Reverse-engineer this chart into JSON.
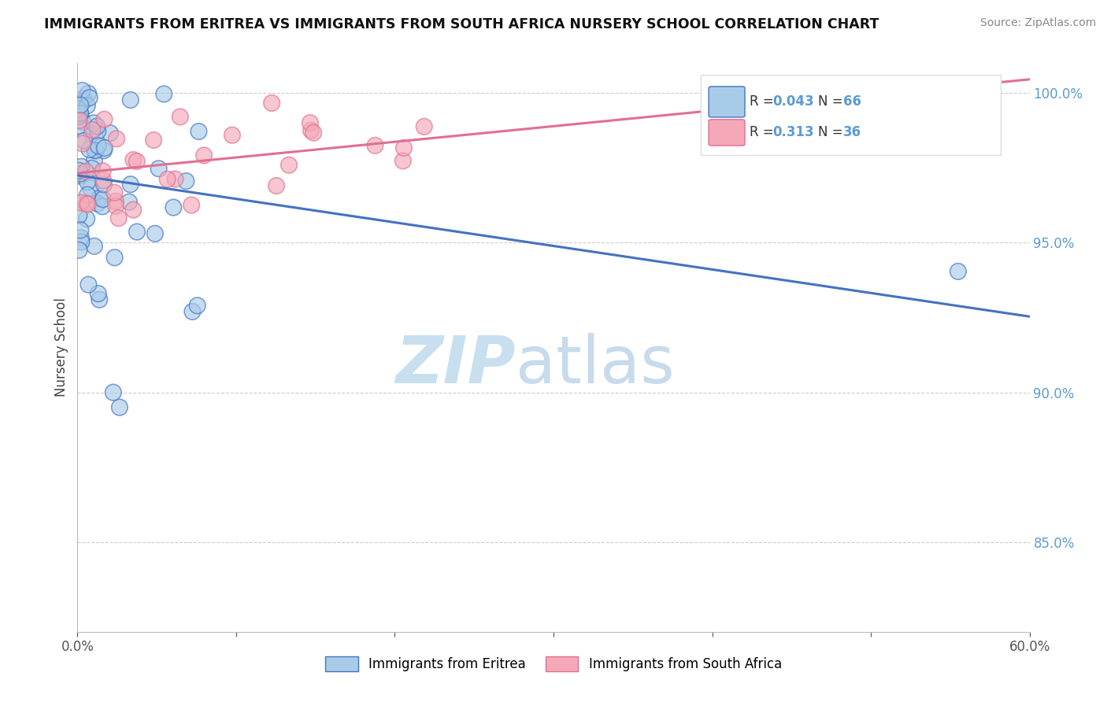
{
  "title": "IMMIGRANTS FROM ERITREA VS IMMIGRANTS FROM SOUTH AFRICA NURSERY SCHOOL CORRELATION CHART",
  "source": "Source: ZipAtlas.com",
  "ylabel": "Nursery School",
  "xmin": 0.0,
  "xmax": 0.6,
  "ymin": 0.82,
  "ymax": 1.01,
  "yticks": [
    0.85,
    0.9,
    0.95,
    1.0
  ],
  "legend_label1": "Immigrants from Eritrea",
  "legend_label2": "Immigrants from South Africa",
  "R1": 0.043,
  "N1": 66,
  "R2": 0.313,
  "N2": 36,
  "color_blue_face": "#A8CCE8",
  "color_blue_edge": "#4472C4",
  "color_pink_face": "#F4A8B8",
  "color_pink_edge": "#E07090",
  "color_blue_line": "#4472C4",
  "color_pink_line": "#E07090",
  "color_axis_label": "#5B9BD5",
  "color_grid": "#CCCCCC",
  "background": "#FFFFFF"
}
